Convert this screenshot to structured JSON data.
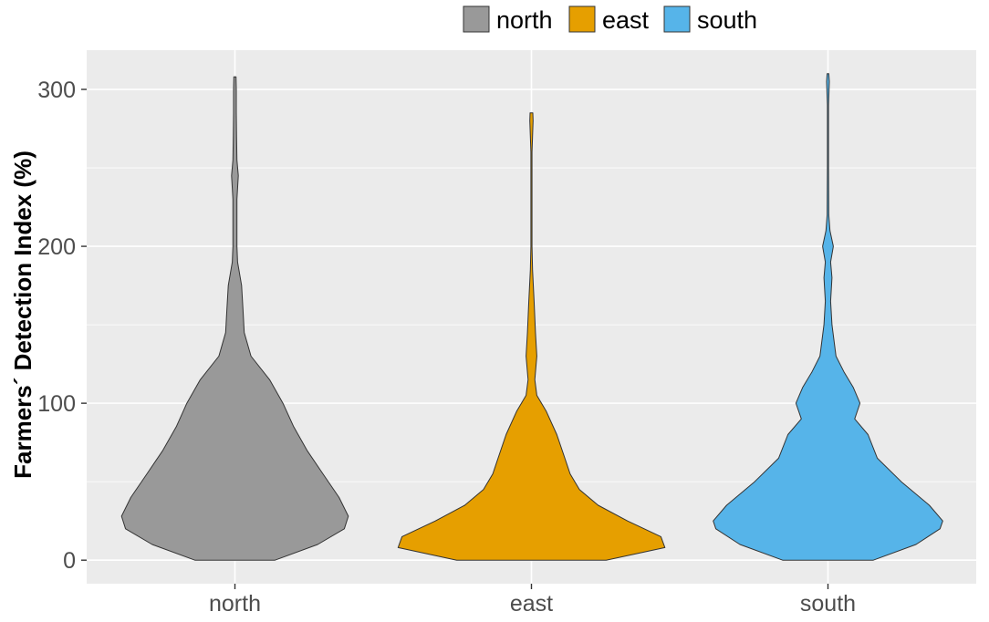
{
  "chart_data": {
    "type": "violin",
    "title": "",
    "xlabel": "",
    "ylabel": "Farmers´ Detection Index (%)",
    "ylim": [
      -15,
      325
    ],
    "yticks": [
      0,
      100,
      200,
      300
    ],
    "grid": true,
    "legend_position": "top",
    "categories": [
      "north",
      "east",
      "south"
    ],
    "series": [
      {
        "name": "north",
        "color": "#999999",
        "min": 0,
        "max": 308,
        "density_profile": [
          [
            0,
            0.3
          ],
          [
            10,
            0.62
          ],
          [
            20,
            0.82
          ],
          [
            28,
            0.85
          ],
          [
            40,
            0.78
          ],
          [
            55,
            0.66
          ],
          [
            70,
            0.54
          ],
          [
            85,
            0.44
          ],
          [
            100,
            0.36
          ],
          [
            115,
            0.26
          ],
          [
            130,
            0.12
          ],
          [
            145,
            0.07
          ],
          [
            160,
            0.06
          ],
          [
            175,
            0.05
          ],
          [
            190,
            0.02
          ],
          [
            200,
            0.015
          ],
          [
            230,
            0.015
          ],
          [
            245,
            0.025
          ],
          [
            255,
            0.015
          ],
          [
            270,
            0.012
          ],
          [
            285,
            0.01
          ],
          [
            300,
            0.01
          ],
          [
            308,
            0.008
          ]
        ]
      },
      {
        "name": "east",
        "color": "#E69F00",
        "min": 0,
        "max": 285,
        "density_profile": [
          [
            0,
            0.56
          ],
          [
            8,
            1.0
          ],
          [
            15,
            0.97
          ],
          [
            25,
            0.72
          ],
          [
            35,
            0.5
          ],
          [
            45,
            0.36
          ],
          [
            55,
            0.29
          ],
          [
            65,
            0.25
          ],
          [
            80,
            0.19
          ],
          [
            95,
            0.11
          ],
          [
            105,
            0.04
          ],
          [
            115,
            0.025
          ],
          [
            130,
            0.04
          ],
          [
            145,
            0.03
          ],
          [
            165,
            0.02
          ],
          [
            185,
            0.008
          ],
          [
            200,
            0.004
          ],
          [
            260,
            0.004
          ],
          [
            270,
            0.008
          ],
          [
            280,
            0.012
          ],
          [
            285,
            0.01
          ]
        ]
      },
      {
        "name": "south",
        "color": "#56B4E9",
        "min": 0,
        "max": 310,
        "density_profile": [
          [
            0,
            0.34
          ],
          [
            10,
            0.66
          ],
          [
            20,
            0.84
          ],
          [
            25,
            0.86
          ],
          [
            35,
            0.76
          ],
          [
            50,
            0.55
          ],
          [
            65,
            0.37
          ],
          [
            80,
            0.3
          ],
          [
            90,
            0.2
          ],
          [
            100,
            0.24
          ],
          [
            110,
            0.19
          ],
          [
            120,
            0.12
          ],
          [
            130,
            0.06
          ],
          [
            150,
            0.03
          ],
          [
            165,
            0.02
          ],
          [
            180,
            0.03
          ],
          [
            190,
            0.02
          ],
          [
            200,
            0.04
          ],
          [
            210,
            0.015
          ],
          [
            220,
            0.006
          ],
          [
            250,
            0.004
          ],
          [
            290,
            0.004
          ],
          [
            305,
            0.01
          ],
          [
            310,
            0.006
          ]
        ]
      }
    ]
  }
}
